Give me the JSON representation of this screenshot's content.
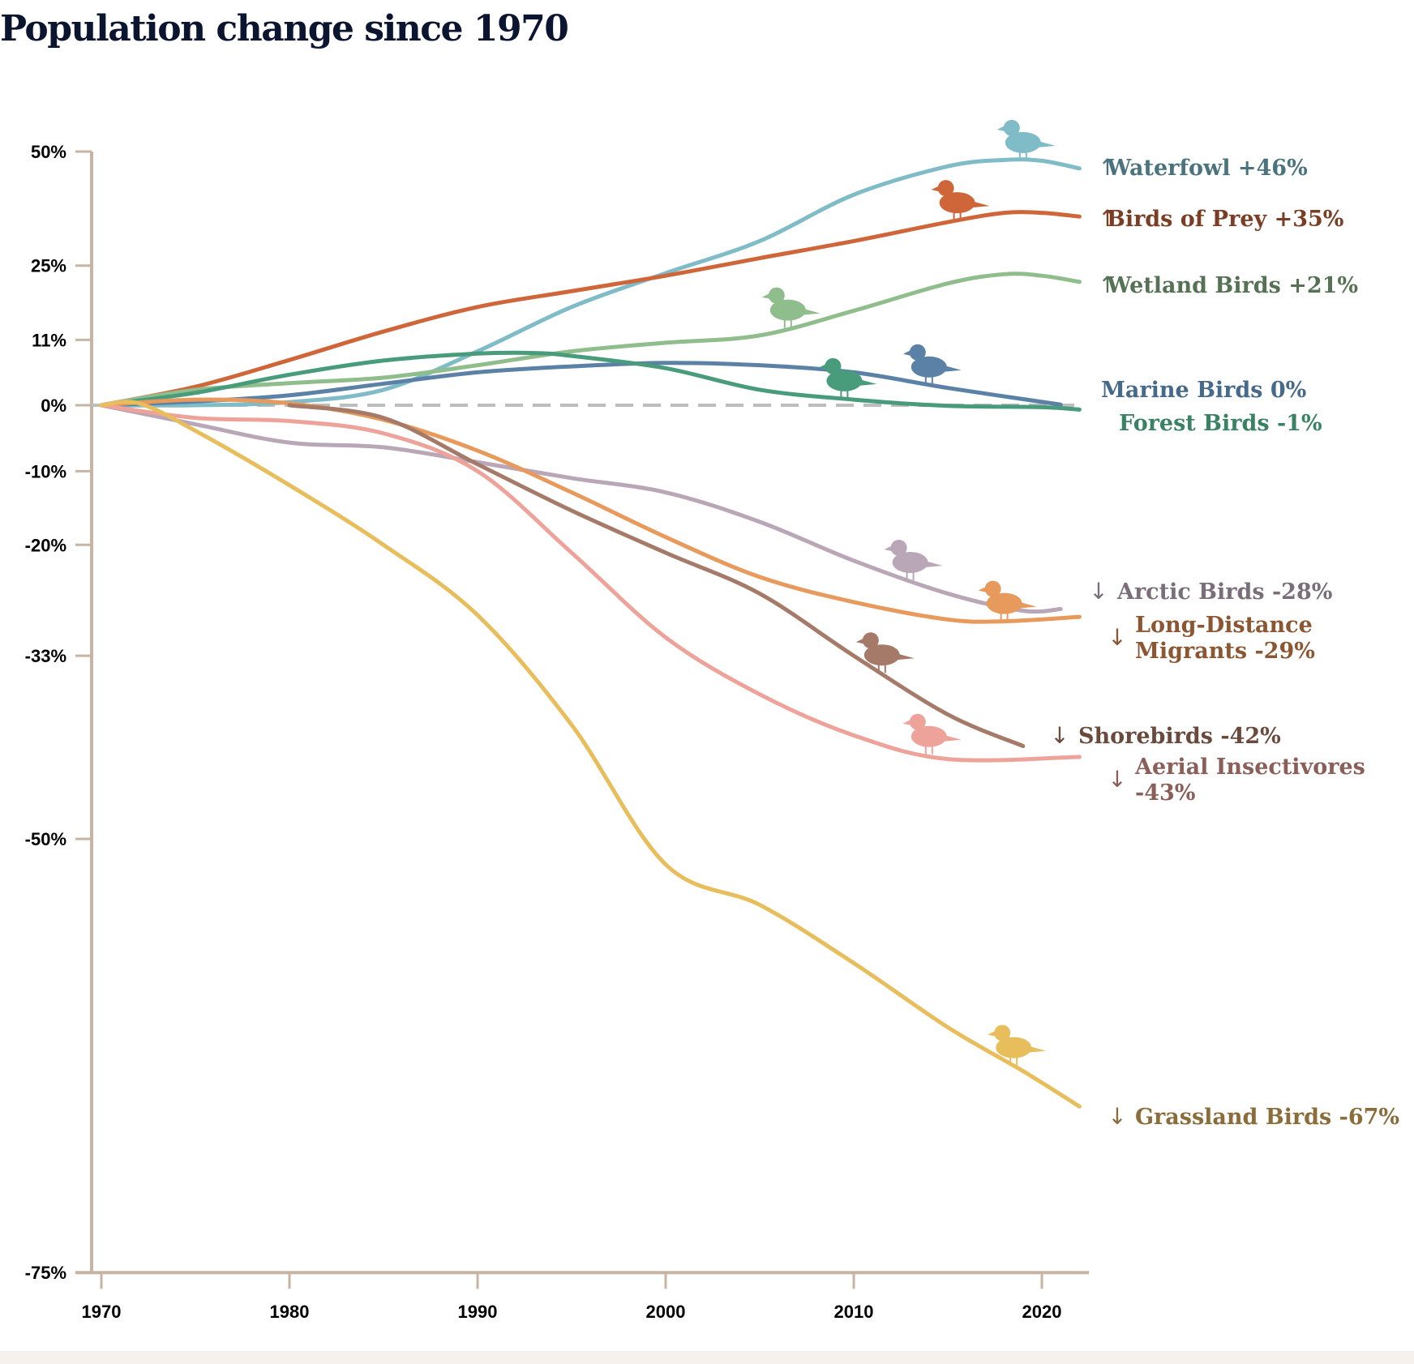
{
  "title": "Population change since 1970",
  "chart_data": {
    "type": "line",
    "title": "Population change since 1970",
    "xlabel": "",
    "ylabel": "",
    "y_scale": "log-ratio",
    "xlim": [
      1970,
      2022.5
    ],
    "ylim": [
      -0.75,
      0.5
    ],
    "x_ticks": [
      1970,
      1980,
      1990,
      2000,
      2010,
      2020
    ],
    "x_tick_labels": [
      "1970",
      "1980",
      "1990",
      "2000",
      "2010",
      "2020"
    ],
    "y_ticks": [
      0.5,
      0.25,
      0.11,
      0,
      -0.1,
      -0.2,
      -0.33,
      -0.5,
      -0.75
    ],
    "y_tick_labels": [
      "50%",
      "25%",
      "11%",
      "0%",
      "-10%",
      "-20%",
      "-33%",
      "-50%",
      "-75%"
    ],
    "reference_line": {
      "value": 0,
      "style": "dashed"
    },
    "grid": false,
    "legend": "direct-labels-right",
    "series": [
      {
        "name": "Waterfowl",
        "label": "Waterfowl +46%",
        "direction": "up",
        "change": 0.46,
        "color": "#7fbcc8",
        "label_color": "#4a737e",
        "icon": "duck-silhouette-icon",
        "x": [
          1970,
          1975,
          1980,
          1985,
          1990,
          1995,
          2000,
          2005,
          2010,
          2015,
          2018,
          2020,
          2022
        ],
        "values": [
          0,
          0,
          0.005,
          0.025,
          0.09,
          0.17,
          0.235,
          0.3,
          0.4,
          0.465,
          0.48,
          0.478,
          0.46
        ]
      },
      {
        "name": "Birds of Prey",
        "label": "Birds of Prey +35%",
        "direction": "up",
        "change": 0.35,
        "color": "#cf663a",
        "label_color": "#7b3d24",
        "icon": "raptor-silhouette-icon",
        "x": [
          1970,
          1975,
          1980,
          1985,
          1990,
          1995,
          2000,
          2005,
          2010,
          2015,
          2018,
          2020,
          2022
        ],
        "values": [
          0,
          0.03,
          0.075,
          0.125,
          0.17,
          0.2,
          0.23,
          0.265,
          0.3,
          0.34,
          0.36,
          0.36,
          0.352
        ]
      },
      {
        "name": "Wetland Birds",
        "label": "Wetland Birds +21%",
        "direction": "up",
        "change": 0.21,
        "color": "#8fbe8c",
        "label_color": "#557255",
        "icon": "heron-silhouette-icon",
        "x": [
          1970,
          1975,
          1980,
          1985,
          1990,
          1995,
          2000,
          2005,
          2010,
          2015,
          2018,
          2020,
          2022
        ],
        "values": [
          0,
          0.025,
          0.036,
          0.045,
          0.066,
          0.09,
          0.105,
          0.118,
          0.163,
          0.215,
          0.233,
          0.23,
          0.218
        ]
      },
      {
        "name": "Marine Birds",
        "label": "Marine Birds 0%",
        "direction": "none",
        "change": 0.0,
        "color": "#5b82a6",
        "label_color": "#466a8a",
        "icon": "puffin-silhouette-icon",
        "x": [
          1970,
          1975,
          1980,
          1985,
          1990,
          1995,
          2000,
          2005,
          2010,
          2015,
          2021
        ],
        "values": [
          0,
          0.006,
          0.016,
          0.035,
          0.054,
          0.064,
          0.07,
          0.066,
          0.054,
          0.028,
          0.001
        ]
      },
      {
        "name": "Forest Birds",
        "label": "Forest Birds -1%",
        "direction": "none",
        "change": -0.01,
        "color": "#489c7c",
        "label_color": "#3a8264",
        "icon": "songbird-perched-silhouette-icon",
        "x": [
          1970,
          1975,
          1980,
          1985,
          1990,
          1993,
          1995,
          2000,
          2005,
          2010,
          2015,
          2020,
          2022
        ],
        "values": [
          0,
          0.02,
          0.05,
          0.074,
          0.086,
          0.087,
          0.082,
          0.061,
          0.025,
          0.009,
          -0.001,
          -0.003,
          -0.007
        ]
      },
      {
        "name": "Arctic Birds",
        "label": "Arctic Birds -28%",
        "direction": "down",
        "change": -0.28,
        "color": "#b9a6b6",
        "label_color": "#7a6e7a",
        "icon": "grouse-silhouette-icon",
        "x": [
          1970,
          1975,
          1980,
          1985,
          1990,
          1995,
          2000,
          2005,
          2010,
          2015,
          2019,
          2021
        ],
        "values": [
          0,
          -0.03,
          -0.058,
          -0.065,
          -0.087,
          -0.11,
          -0.13,
          -0.17,
          -0.22,
          -0.26,
          -0.28,
          -0.278
        ]
      },
      {
        "name": "Long-Distance Migrants",
        "label": "Long-Distance Migrants -29%",
        "label_lines": [
          "Long-Distance",
          "Migrants -29%"
        ],
        "direction": "down",
        "change": -0.29,
        "color": "#e89a5c",
        "label_color": "#8c5632",
        "icon": "flying-songbird-silhouette-icon",
        "x": [
          1970,
          1975,
          1980,
          1985,
          1990,
          1995,
          2000,
          2005,
          2010,
          2015,
          2018,
          2022
        ],
        "values": [
          0,
          0.009,
          0.003,
          -0.023,
          -0.07,
          -0.13,
          -0.19,
          -0.24,
          -0.27,
          -0.29,
          -0.292,
          -0.287
        ]
      },
      {
        "name": "Shorebirds",
        "label": "Shorebirds -42%",
        "direction": "down",
        "change": -0.42,
        "color": "#a67a68",
        "label_color": "#6b4a3e",
        "icon": "curlew-silhouette-icon",
        "x": [
          1980,
          1985,
          1990,
          1995,
          2000,
          2005,
          2010,
          2015,
          2019
        ],
        "values": [
          0,
          -0.02,
          -0.09,
          -0.155,
          -0.21,
          -0.26,
          -0.33,
          -0.39,
          -0.42
        ]
      },
      {
        "name": "Aerial Insectivores",
        "label": "Aerial Insectivores -43%",
        "label_lines": [
          "Aerial Insectivores",
          "-43%"
        ],
        "direction": "down",
        "change": -0.43,
        "color": "#eea39a",
        "label_color": "#8c5e58",
        "icon": "swift-silhouette-icon",
        "x": [
          1970,
          1975,
          1980,
          1985,
          1990,
          1995,
          2000,
          2005,
          2010,
          2015,
          2022
        ],
        "values": [
          0,
          -0.02,
          -0.025,
          -0.044,
          -0.1,
          -0.21,
          -0.31,
          -0.37,
          -0.41,
          -0.432,
          -0.43
        ]
      },
      {
        "name": "Grassland Birds",
        "label": "Grassland Birds -67%",
        "direction": "down",
        "change": -0.67,
        "color": "#e8bd5c",
        "label_color": "#8a6d3a",
        "icon": "meadowlark-silhouette-icon",
        "x": [
          1970,
          1972,
          1975,
          1980,
          1985,
          1990,
          1995,
          2000,
          2005,
          2010,
          2015,
          2019,
          2022
        ],
        "values": [
          0,
          0.003,
          -0.04,
          -0.12,
          -0.2,
          -0.285,
          -0.4,
          -0.52,
          -0.55,
          -0.59,
          -0.63,
          -0.655,
          -0.674
        ]
      }
    ]
  }
}
